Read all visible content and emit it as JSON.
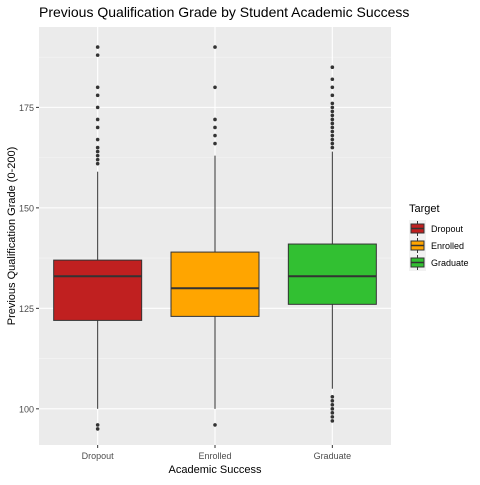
{
  "chart_data": {
    "type": "boxplot",
    "title": "Previous Qualification Grade by Student Academic Success",
    "xlabel": "Academic Success",
    "ylabel": "Previous Qualification Grade (0-200)",
    "ylim": [
      91,
      195
    ],
    "yticks": [
      100,
      125,
      150,
      175
    ],
    "grid": true,
    "legend": {
      "title": "Target",
      "position": "right",
      "entries": [
        "Dropout",
        "Enrolled",
        "Graduate"
      ]
    },
    "categories": [
      "Dropout",
      "Enrolled",
      "Graduate"
    ],
    "boxes": [
      {
        "name": "Dropout",
        "color": "#c02020",
        "q1": 122,
        "median": 133,
        "q3": 137,
        "whisker_low": 100,
        "whisker_high": 159,
        "outliers": [
          190,
          188,
          180,
          178,
          175,
          172,
          170,
          167,
          165,
          164,
          163,
          162,
          161,
          96,
          95
        ]
      },
      {
        "name": "Enrolled",
        "color": "#ffa500",
        "q1": 123,
        "median": 130,
        "q3": 139,
        "whisker_low": 100,
        "whisker_high": 163,
        "outliers": [
          190,
          180,
          172,
          170,
          168,
          166,
          96
        ]
      },
      {
        "name": "Graduate",
        "color": "#32c032",
        "q1": 126,
        "median": 133,
        "q3": 141,
        "whisker_low": 105,
        "whisker_high": 164,
        "outliers": [
          185,
          182,
          180,
          178,
          176,
          175,
          174,
          173,
          172,
          171,
          170,
          169,
          168,
          167,
          166,
          165,
          103,
          102,
          101,
          100,
          99,
          98,
          97
        ]
      }
    ]
  }
}
